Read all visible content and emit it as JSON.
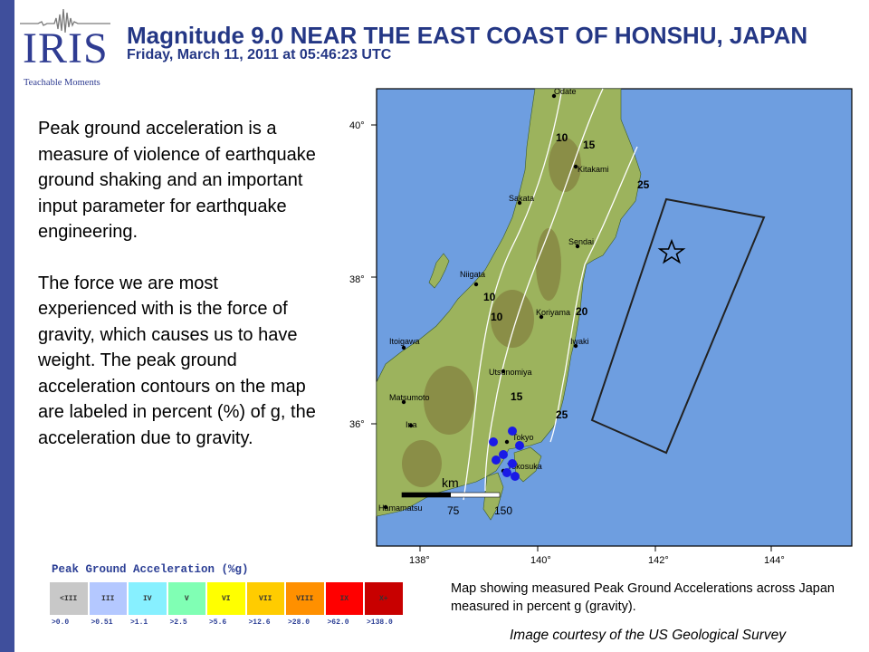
{
  "header": {
    "logo_text": "IRIS",
    "logo_subtitle": "Teachable Moments",
    "title": "Magnitude 9.0 NEAR THE EAST COAST OF HONSHU, JAPAN",
    "subtitle": "Friday,  March 11, 2011 at 05:46:23 UTC"
  },
  "body": {
    "paragraph1": "Peak ground acceleration is a measure of violence of earthquake ground shaking and an important input parameter for earthquake engineering.",
    "paragraph2": "The force we are most experienced with is the force of gravity, which causes us to have weight. The peak ground acceleration contours on the map are labeled in percent (%) of g, the acceleration due to gravity."
  },
  "map": {
    "lat_labels": [
      "40°",
      "38°",
      "36°"
    ],
    "lon_labels": [
      "138°",
      "140°",
      "142°",
      "144°"
    ],
    "cities": [
      "Odate",
      "Kitakami",
      "Sakata",
      "Sendai",
      "Niigata",
      "Koriyama",
      "Itoigawa",
      "Iwaki",
      "Utsunomiya",
      "Matsumoto",
      "Ina",
      "Tokyo",
      "Yokosuka",
      "Hamamatsu"
    ],
    "contour_labels": [
      "10",
      "15",
      "25",
      "10",
      "10",
      "20",
      "15",
      "25"
    ],
    "scale": {
      "unit": "km",
      "label1": "75",
      "label2": "150"
    },
    "colors": {
      "ocean": "#6e9ee0",
      "land": "#9cb35d",
      "epicenter": "#000000",
      "station": "#1a1ae6"
    }
  },
  "legend": {
    "title": "Peak Ground Acceleration (%g)",
    "cells": [
      {
        "label": "<III",
        "color": "#c8c8c8",
        "min": ">0.0"
      },
      {
        "label": "III",
        "color": "#b4c8ff",
        "min": ">0.51"
      },
      {
        "label": "IV",
        "color": "#87f0ff",
        "min": ">1.1"
      },
      {
        "label": "V",
        "color": "#80ffb4",
        "min": ">2.5"
      },
      {
        "label": "VI",
        "color": "#ffff00",
        "min": ">5.6"
      },
      {
        "label": "VII",
        "color": "#ffcc00",
        "min": ">12.6"
      },
      {
        "label": "VIII",
        "color": "#ff9000",
        "min": ">28.0"
      },
      {
        "label": "IX",
        "color": "#ff0000",
        "min": ">62.0"
      },
      {
        "label": "X+",
        "color": "#c80000",
        "min": ">138.0"
      }
    ]
  },
  "caption": "Map showing measured Peak Ground Accelerations across Japan measured in percent g (gravity).",
  "credit": "Image courtesy of the US Geological Survey"
}
